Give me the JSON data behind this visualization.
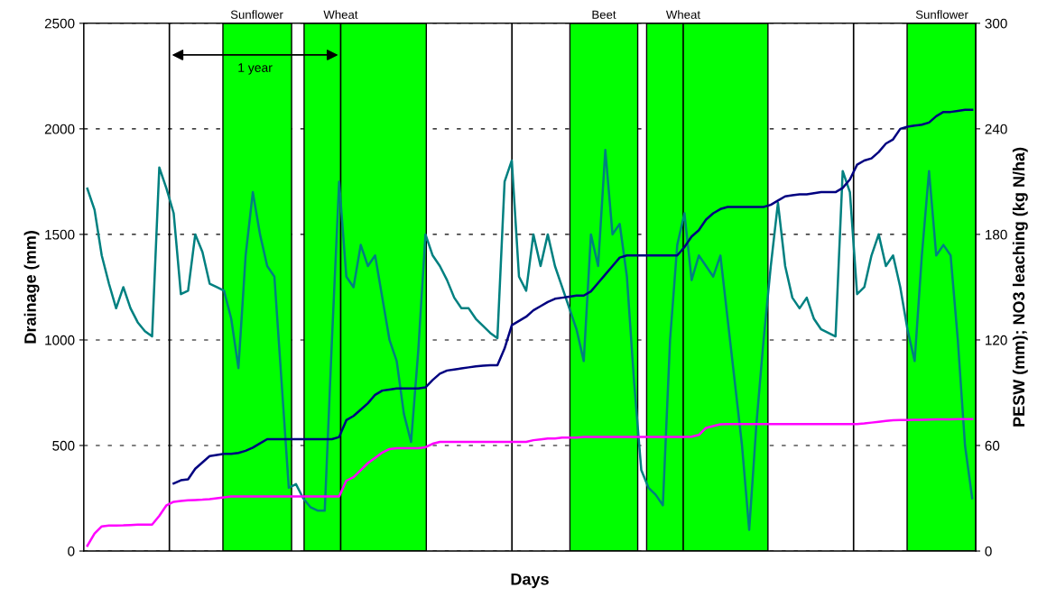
{
  "chart_data": {
    "type": "line",
    "xlabel": "Days",
    "ylabel": "Drainage (mm)",
    "y2label": "PESW (mm); NO3 leaching (kg N/ha)",
    "categories": [
      null,
      null,
      null,
      null,
      null,
      null,
      null,
      null,
      null,
      null,
      null,
      null,
      null,
      null,
      null,
      null,
      null,
      null,
      null,
      null,
      null,
      null,
      null,
      null,
      null,
      null,
      null,
      null,
      null,
      null,
      null,
      null,
      null,
      null,
      null,
      null,
      null,
      null,
      null,
      null,
      null,
      null,
      null,
      null,
      null,
      null,
      null,
      null,
      null,
      null,
      null,
      null,
      null,
      null,
      null,
      null,
      null,
      null,
      null,
      null,
      null,
      null,
      null,
      null,
      null,
      null,
      null,
      null,
      null,
      null,
      null,
      null,
      null,
      null,
      null,
      null,
      null,
      null,
      null,
      null,
      null,
      null,
      null,
      null,
      null,
      null,
      null,
      null,
      null,
      null,
      null,
      null,
      null,
      null,
      null,
      null,
      null,
      null,
      null,
      null,
      null,
      null,
      null,
      null,
      null,
      null,
      null,
      null,
      null,
      null,
      null,
      null,
      null,
      null,
      null,
      null,
      null,
      null,
      null,
      null,
      null,
      null,
      null,
      null
    ],
    "series": [
      {
        "color": "#008080",
        "axis": "y2",
        "values": [
          206,
          194,
          168,
          152,
          138,
          150,
          138,
          130,
          125,
          122,
          218,
          206,
          192,
          146,
          148,
          180,
          170,
          152,
          150,
          148,
          132,
          104,
          168,
          204,
          180,
          162,
          156,
          96,
          36,
          38,
          30,
          25,
          23,
          23,
          120,
          210,
          156,
          150,
          174,
          162,
          168,
          144,
          120,
          108,
          78,
          62,
          114,
          180,
          168,
          162,
          154,
          144,
          138,
          138,
          132,
          128,
          124,
          121,
          210,
          222,
          156,
          148,
          180,
          162,
          180,
          162,
          150,
          138,
          126,
          108,
          180,
          162,
          228,
          180,
          186,
          156,
          96,
          46,
          36,
          32,
          26,
          120,
          174,
          192,
          154,
          168,
          162,
          156,
          168,
          132,
          96,
          60,
          12,
          72,
          120,
          162,
          198,
          162,
          144,
          138,
          144,
          132,
          126,
          124,
          122,
          216,
          204,
          146,
          150,
          168,
          180,
          162,
          168,
          150,
          126,
          108,
          168,
          216,
          168,
          174,
          168,
          120,
          60,
          30
        ]
      },
      {
        "color": "#000080",
        "values": [
          null,
          null,
          null,
          null,
          null,
          null,
          null,
          null,
          null,
          null,
          null,
          null,
          320,
          335,
          340,
          390,
          420,
          450,
          455,
          460,
          460,
          465,
          475,
          490,
          510,
          530,
          530,
          530,
          530,
          530,
          530,
          530,
          530,
          530,
          530,
          540,
          620,
          640,
          670,
          700,
          740,
          760,
          765,
          770,
          770,
          770,
          770,
          775,
          810,
          840,
          855,
          860,
          865,
          870,
          875,
          878,
          880,
          880,
          960,
          1070,
          1090,
          1110,
          1140,
          1160,
          1180,
          1195,
          1200,
          1205,
          1210,
          1210,
          1230,
          1270,
          1310,
          1350,
          1390,
          1400,
          1400,
          1400,
          1400,
          1400,
          1400,
          1400,
          1400,
          1440,
          1490,
          1520,
          1570,
          1600,
          1620,
          1630,
          1630,
          1630,
          1630,
          1630,
          1630,
          1640,
          1660,
          1680,
          1685,
          1690,
          1690,
          1695,
          1700,
          1700,
          1700,
          1720,
          1760,
          1830,
          1850,
          1860,
          1890,
          1930,
          1950,
          2000,
          2010,
          2015,
          2020,
          2030,
          2060,
          2080,
          2080,
          2085,
          2090,
          2090
        ]
      },
      {
        "color": "#ff00ff",
        "axis": "y2",
        "values": [
          3,
          10,
          14,
          14.5,
          14.5,
          14.6,
          14.8,
          15,
          15,
          15,
          20,
          26,
          28,
          28.5,
          28.8,
          29,
          29.2,
          29.5,
          30,
          30.5,
          31,
          31,
          31,
          31,
          31,
          31,
          31,
          31,
          31,
          31,
          31,
          31,
          31,
          31,
          31,
          31,
          40,
          42,
          46,
          50,
          53,
          56,
          58,
          58.5,
          58.5,
          58.5,
          58.5,
          59,
          61,
          62,
          62,
          62,
          62,
          62,
          62,
          62,
          62,
          62,
          62,
          62,
          62,
          62,
          63,
          63.5,
          64,
          64,
          64.5,
          64.5,
          64.5,
          64.8,
          64.8,
          64.8,
          64.8,
          64.8,
          64.8,
          64.8,
          64.8,
          64.8,
          64.8,
          64.8,
          64.8,
          64.8,
          64.8,
          64.8,
          65,
          66,
          70,
          71,
          72,
          72.2,
          72.2,
          72.2,
          72.2,
          72.2,
          72.2,
          72.2,
          72.2,
          72.2,
          72.2,
          72.2,
          72.2,
          72.2,
          72.2,
          72.2,
          72.2,
          72.2,
          72.2,
          72.2,
          72.5,
          73,
          73.5,
          74,
          74.4,
          74.5,
          74.5,
          74.6,
          74.6,
          74.7,
          74.8,
          74.8,
          74.9,
          75,
          75,
          75
        ]
      }
    ],
    "ylim": [
      0,
      2500
    ],
    "yticks": [
      0,
      500,
      1000,
      1500,
      2000,
      2500
    ],
    "y2lim": [
      0,
      300
    ],
    "y2ticks": [
      0,
      60,
      120,
      180,
      240,
      300
    ],
    "grid": "y",
    "line_style": "solid",
    "marker": "none",
    "annotations": [
      "1 year",
      "Sunflower",
      "Wheat",
      "Beet",
      "Wheat",
      "Sunflower"
    ]
  }
}
